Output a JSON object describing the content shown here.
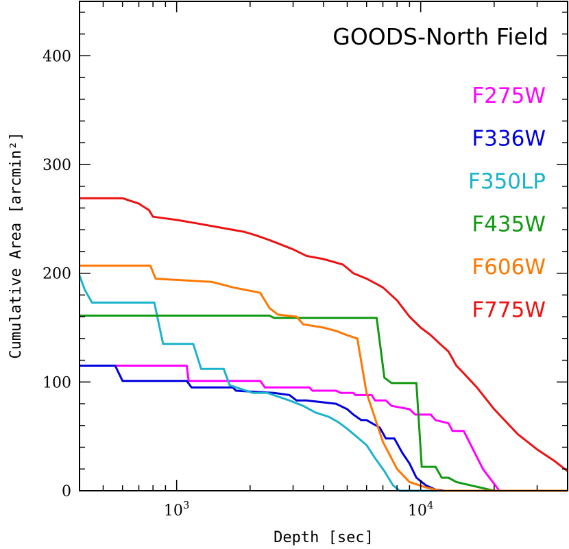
{
  "chart_data": {
    "type": "line",
    "title": "GOODS-North Field",
    "xlabel": "Depth [sec]",
    "ylabel": "Cumulative Area [arcmin²]",
    "x_scale": "log",
    "xlim": [
      400,
      40000
    ],
    "ylim": [
      0,
      450
    ],
    "xtick_labels": [
      {
        "value": 1000,
        "base": "10",
        "exp": "3"
      },
      {
        "value": 10000,
        "base": "10",
        "exp": "4"
      }
    ],
    "yticks": [
      0,
      100,
      200,
      300,
      400
    ],
    "grid": false,
    "legend_position": "right",
    "series": [
      {
        "name": "F275W",
        "color": "#ff00ff",
        "x": [
          400,
          1100,
          1120,
          2200,
          2300,
          3500,
          3600,
          4500,
          4700,
          5300,
          5400,
          6300,
          6500,
          7200,
          7600,
          9000,
          9500,
          11000,
          11500,
          13000,
          13500,
          15000,
          18000,
          21000,
          40000
        ],
        "y": [
          115,
          115,
          101,
          101,
          95,
          95,
          92,
          92,
          90,
          90,
          88,
          88,
          83,
          83,
          78,
          75,
          70,
          70,
          65,
          62,
          55,
          55,
          20,
          0,
          0
        ]
      },
      {
        "name": "F336W",
        "color": "#0000dd",
        "x": [
          400,
          560,
          600,
          1100,
          1150,
          1700,
          1750,
          2500,
          2900,
          3100,
          3400,
          4500,
          5000,
          5300,
          5700,
          6000,
          6800,
          7200,
          7800,
          8400,
          9000,
          9600,
          10500,
          11500,
          12500,
          40000
        ],
        "y": [
          115,
          115,
          101,
          101,
          95,
          95,
          92,
          90,
          88,
          83,
          83,
          80,
          75,
          70,
          65,
          65,
          58,
          48,
          48,
          35,
          25,
          12,
          5,
          1,
          0,
          0
        ]
      },
      {
        "name": "F350LP",
        "color": "#1ab3cc",
        "x": [
          400,
          420,
          450,
          810,
          880,
          1170,
          1260,
          1560,
          1650,
          2050,
          2350,
          2900,
          3300,
          3700,
          4200,
          4600,
          5000,
          6000,
          6500,
          7100,
          7700,
          8200,
          40000
        ],
        "y": [
          198,
          185,
          173,
          173,
          135,
          135,
          112,
          112,
          97,
          90,
          90,
          83,
          78,
          72,
          68,
          63,
          57,
          42,
          30,
          18,
          5,
          0,
          0
        ]
      },
      {
        "name": "F435W",
        "color": "#119911",
        "x": [
          400,
          2400,
          2500,
          6600,
          7100,
          7600,
          9600,
          10100,
          11500,
          12200,
          13000,
          14000,
          16000,
          20000,
          40000
        ],
        "y": [
          161,
          161,
          159,
          159,
          104,
          99,
          99,
          22,
          22,
          12,
          12,
          8,
          5,
          0,
          0
        ]
      },
      {
        "name": "F606W",
        "color": "#ff7700",
        "x": [
          400,
          780,
          820,
          1400,
          1700,
          2200,
          2400,
          2600,
          3100,
          3300,
          4000,
          4500,
          5000,
          5500,
          6000,
          7000,
          8000,
          9000,
          10500,
          12000,
          13000,
          40000
        ],
        "y": [
          207,
          207,
          195,
          192,
          187,
          182,
          168,
          162,
          160,
          153,
          150,
          147,
          143,
          140,
          90,
          45,
          20,
          8,
          3,
          0,
          0,
          0
        ]
      },
      {
        "name": "F775W",
        "color": "#ee1111",
        "x": [
          400,
          600,
          700,
          770,
          800,
          1000,
          1200,
          1600,
          1900,
          2100,
          2300,
          2500,
          3000,
          3400,
          4000,
          4800,
          5300,
          6000,
          7000,
          8000,
          9000,
          10000,
          11000,
          12000,
          13000,
          14000,
          15000,
          17000,
          20000,
          25000,
          30000,
          35000,
          40000
        ],
        "y": [
          269,
          269,
          264,
          258,
          252,
          249,
          246,
          241,
          238,
          235,
          232,
          229,
          222,
          216,
          213,
          208,
          200,
          195,
          187,
          175,
          160,
          150,
          143,
          135,
          128,
          115,
          108,
          95,
          75,
          52,
          38,
          28,
          18
        ]
      }
    ]
  }
}
